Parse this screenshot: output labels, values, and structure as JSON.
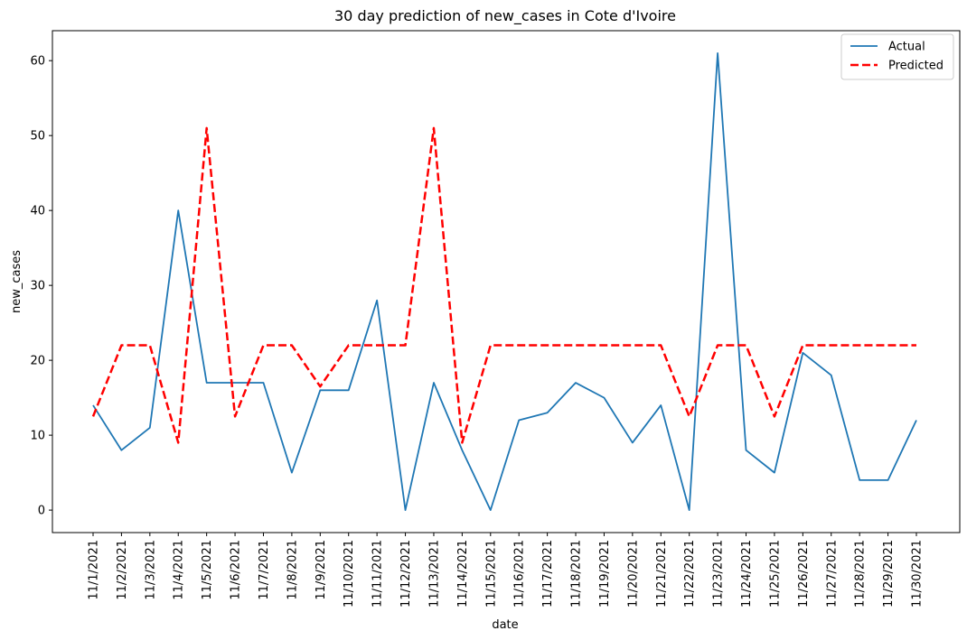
{
  "chart_data": {
    "type": "line",
    "title": "30 day prediction of new_cases in Cote d'Ivoire",
    "xlabel": "date",
    "ylabel": "new_cases",
    "ylim": [
      -3,
      64
    ],
    "yticks": [
      0,
      10,
      20,
      30,
      40,
      50,
      60
    ],
    "categories": [
      "11/1/2021",
      "11/2/2021",
      "11/3/2021",
      "11/4/2021",
      "11/5/2021",
      "11/6/2021",
      "11/7/2021",
      "11/8/2021",
      "11/9/2021",
      "11/10/2021",
      "11/11/2021",
      "11/12/2021",
      "11/13/2021",
      "11/14/2021",
      "11/15/2021",
      "11/16/2021",
      "11/17/2021",
      "11/18/2021",
      "11/19/2021",
      "11/20/2021",
      "11/21/2021",
      "11/22/2021",
      "11/23/2021",
      "11/24/2021",
      "11/25/2021",
      "11/26/2021",
      "11/27/2021",
      "11/28/2021",
      "11/29/2021",
      "11/30/2021"
    ],
    "series": [
      {
        "name": "Actual",
        "color": "#1f77b4",
        "style": "solid",
        "values": [
          14,
          8,
          11,
          40,
          17,
          17,
          17,
          5,
          16,
          16,
          28,
          0,
          17,
          8,
          0,
          12,
          13,
          17,
          15,
          9,
          14,
          0,
          61,
          8,
          5,
          21,
          18,
          4,
          4,
          12
        ]
      },
      {
        "name": "Predicted",
        "color": "#ff0000",
        "style": "dashed",
        "values": [
          12.5,
          22,
          22,
          9,
          51,
          12.5,
          22,
          22,
          16.5,
          22,
          22,
          22,
          51,
          9,
          22,
          22,
          22,
          22,
          22,
          22,
          22,
          12.5,
          22,
          22,
          12.5,
          22,
          22,
          22,
          22,
          22
        ]
      }
    ],
    "legend": "top-right",
    "grid": false
  }
}
